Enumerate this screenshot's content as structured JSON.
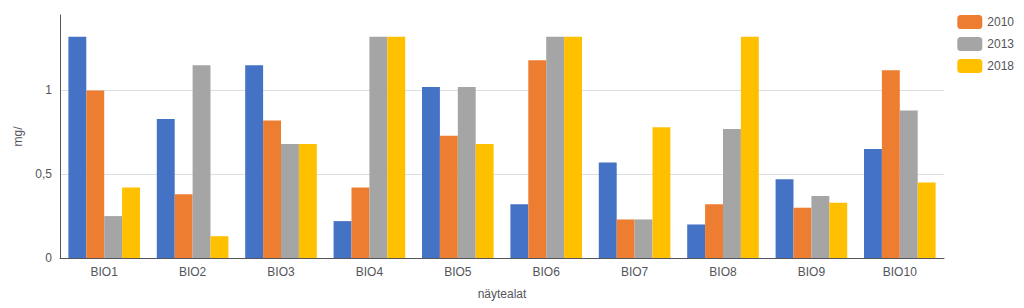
{
  "chart_data": {
    "type": "bar",
    "xlabel": "näytealat",
    "ylabel": "mg/",
    "categories": [
      "BIO1",
      "BIO2",
      "BIO3",
      "BIO4",
      "BIO5",
      "BIO6",
      "BIO7",
      "BIO8",
      "BIO9",
      "BIO10"
    ],
    "series": [
      {
        "color": "#4472C4",
        "values": [
          1.32,
          0.83,
          1.15,
          0.22,
          1.02,
          0.32,
          0.57,
          0.2,
          0.47,
          0.65
        ]
      },
      {
        "name": "2010",
        "color": "#ED7D31",
        "values": [
          1.0,
          0.38,
          0.82,
          0.42,
          0.73,
          1.18,
          0.23,
          0.32,
          0.3,
          1.12
        ]
      },
      {
        "name": "2013",
        "color": "#A5A5A5",
        "values": [
          0.25,
          1.15,
          0.68,
          1.32,
          1.02,
          1.32,
          0.23,
          0.77,
          0.37,
          0.88
        ]
      },
      {
        "name": "2018",
        "color": "#FFC000",
        "values": [
          0.42,
          0.13,
          0.68,
          1.32,
          0.68,
          1.32,
          0.78,
          1.32,
          0.33,
          0.45
        ]
      }
    ],
    "ylim": [
      0,
      1.45
    ],
    "yticks": [
      0,
      {
        "value": 0.5,
        "label": "0,5"
      },
      1
    ],
    "grid": true,
    "legend": "upper right"
  }
}
